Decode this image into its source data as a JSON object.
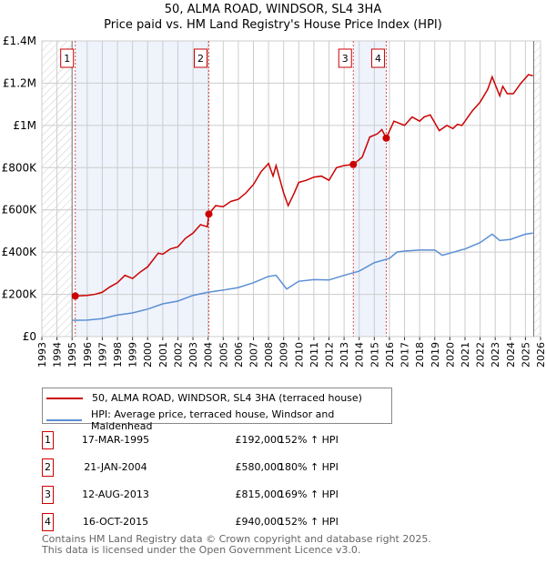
{
  "title": "50, ALMA ROAD, WINDSOR, SL4 3HA",
  "subtitle": "Price paid vs. HM Land Registry's House Price Index (HPI)",
  "chart_data": {
    "type": "line",
    "title": "50, ALMA ROAD, WINDSOR, SL4 3HA",
    "subtitle": "Price paid vs. HM Land Registry's House Price Index (HPI)",
    "xlim": [
      1993,
      2026
    ],
    "ylim": [
      0,
      1400000
    ],
    "x_ticks": [
      "1993",
      "1994",
      "1995",
      "1996",
      "1997",
      "1998",
      "1999",
      "2000",
      "2001",
      "2002",
      "2003",
      "2004",
      "2005",
      "2006",
      "2007",
      "2008",
      "2009",
      "2010",
      "2011",
      "2012",
      "2013",
      "2014",
      "2015",
      "2016",
      "2017",
      "2018",
      "2019",
      "2020",
      "2021",
      "2022",
      "2023",
      "2024",
      "2025",
      "2026"
    ],
    "y_ticks": [
      {
        "v": 0,
        "label": "£0"
      },
      {
        "v": 200000,
        "label": "£200K"
      },
      {
        "v": 400000,
        "label": "£400K"
      },
      {
        "v": 600000,
        "label": "£600K"
      },
      {
        "v": 800000,
        "label": "£800K"
      },
      {
        "v": 1000000,
        "label": "£1M"
      },
      {
        "v": 1200000,
        "label": "£1.2M"
      },
      {
        "v": 1400000,
        "label": "£1.4M"
      }
    ],
    "grid": true,
    "hatched_ranges": [
      [
        1993,
        1995.0
      ],
      [
        2025.55,
        2026
      ]
    ],
    "shaded_ranges": [
      [
        1995.21,
        2004.05
      ],
      [
        2013.61,
        2015.79
      ]
    ],
    "series": [
      {
        "name": "50, ALMA ROAD, WINDSOR, SL4 3HA (terraced house)",
        "color": "#cc0000",
        "points": [
          [
            1995.21,
            192000
          ],
          [
            1996,
            195000
          ],
          [
            1996.5,
            200000
          ],
          [
            1997,
            210000
          ],
          [
            1997.5,
            235000
          ],
          [
            1998,
            255000
          ],
          [
            1998.5,
            290000
          ],
          [
            1999,
            275000
          ],
          [
            1999.5,
            305000
          ],
          [
            2000,
            330000
          ],
          [
            2000.7,
            395000
          ],
          [
            2001,
            390000
          ],
          [
            2001.5,
            415000
          ],
          [
            2002,
            425000
          ],
          [
            2002.5,
            465000
          ],
          [
            2003,
            490000
          ],
          [
            2003.5,
            530000
          ],
          [
            2003.95,
            520000
          ],
          [
            2004.05,
            580000
          ],
          [
            2004.5,
            620000
          ],
          [
            2005,
            615000
          ],
          [
            2005.5,
            640000
          ],
          [
            2006,
            650000
          ],
          [
            2006.5,
            680000
          ],
          [
            2007,
            720000
          ],
          [
            2007.5,
            780000
          ],
          [
            2008,
            820000
          ],
          [
            2008.3,
            760000
          ],
          [
            2008.5,
            810000
          ],
          [
            2009,
            680000
          ],
          [
            2009.3,
            620000
          ],
          [
            2009.7,
            680000
          ],
          [
            2010,
            730000
          ],
          [
            2010.5,
            740000
          ],
          [
            2011,
            755000
          ],
          [
            2011.5,
            760000
          ],
          [
            2012,
            740000
          ],
          [
            2012.5,
            800000
          ],
          [
            2013,
            810000
          ],
          [
            2013.61,
            815000
          ],
          [
            2014.2,
            850000
          ],
          [
            2014.7,
            945000
          ],
          [
            2015.2,
            960000
          ],
          [
            2015.5,
            980000
          ],
          [
            2015.79,
            940000
          ],
          [
            2016.3,
            1020000
          ],
          [
            2017,
            1000000
          ],
          [
            2017.5,
            1040000
          ],
          [
            2018,
            1020000
          ],
          [
            2018.3,
            1040000
          ],
          [
            2018.7,
            1050000
          ],
          [
            2019.3,
            975000
          ],
          [
            2019.8,
            1000000
          ],
          [
            2020.2,
            985000
          ],
          [
            2020.5,
            1005000
          ],
          [
            2020.8,
            1000000
          ],
          [
            2021.5,
            1070000
          ],
          [
            2022,
            1110000
          ],
          [
            2022.5,
            1170000
          ],
          [
            2022.8,
            1230000
          ],
          [
            2023.3,
            1140000
          ],
          [
            2023.5,
            1185000
          ],
          [
            2023.8,
            1150000
          ],
          [
            2024.2,
            1150000
          ],
          [
            2024.7,
            1200000
          ],
          [
            2025.2,
            1240000
          ],
          [
            2025.5,
            1235000
          ]
        ]
      },
      {
        "name": "HPI: Average price, terraced house, Windsor and Maidenhead",
        "color": "#5b8fd4",
        "points": [
          [
            1995.0,
            77000
          ],
          [
            1996,
            78000
          ],
          [
            1997,
            85000
          ],
          [
            1998,
            102000
          ],
          [
            1999,
            112000
          ],
          [
            2000,
            130000
          ],
          [
            2001,
            155000
          ],
          [
            2002,
            168000
          ],
          [
            2003,
            195000
          ],
          [
            2004,
            210000
          ],
          [
            2005,
            220000
          ],
          [
            2006,
            232000
          ],
          [
            2007,
            255000
          ],
          [
            2008,
            285000
          ],
          [
            2008.5,
            290000
          ],
          [
            2009.2,
            225000
          ],
          [
            2010,
            262000
          ],
          [
            2011,
            270000
          ],
          [
            2012,
            268000
          ],
          [
            2013,
            290000
          ],
          [
            2014,
            310000
          ],
          [
            2015,
            350000
          ],
          [
            2016,
            370000
          ],
          [
            2016.5,
            400000
          ],
          [
            2017,
            405000
          ],
          [
            2018,
            410000
          ],
          [
            2019,
            410000
          ],
          [
            2019.5,
            385000
          ],
          [
            2020,
            395000
          ],
          [
            2021,
            415000
          ],
          [
            2022,
            445000
          ],
          [
            2022.8,
            485000
          ],
          [
            2023.3,
            455000
          ],
          [
            2024,
            460000
          ],
          [
            2025,
            485000
          ],
          [
            2025.5,
            490000
          ]
        ]
      }
    ],
    "markers": [
      {
        "label": "1",
        "x": 1995.21,
        "y": 192000
      },
      {
        "label": "2",
        "x": 2004.05,
        "y": 580000
      },
      {
        "label": "3",
        "x": 2013.61,
        "y": 815000
      },
      {
        "label": "4",
        "x": 2015.79,
        "y": 940000
      }
    ],
    "legend_placement": "below"
  },
  "legend": {
    "red": "50, ALMA ROAD, WINDSOR, SL4 3HA (terraced house)",
    "blue": "HPI: Average price, terraced house, Windsor and Maidenhead"
  },
  "sales": [
    {
      "n": "1",
      "date": "17-MAR-1995",
      "price": "£192,000",
      "hpi": "152% ↑ HPI"
    },
    {
      "n": "2",
      "date": "21-JAN-2004",
      "price": "£580,000",
      "hpi": "180% ↑ HPI"
    },
    {
      "n": "3",
      "date": "12-AUG-2013",
      "price": "£815,000",
      "hpi": "169% ↑ HPI"
    },
    {
      "n": "4",
      "date": "16-OCT-2015",
      "price": "£940,000",
      "hpi": "152% ↑ HPI"
    }
  ],
  "footer": {
    "line1": "Contains HM Land Registry data © Crown copyright and database right 2025.",
    "line2": "This data is licensed under the Open Government Licence v3.0."
  }
}
